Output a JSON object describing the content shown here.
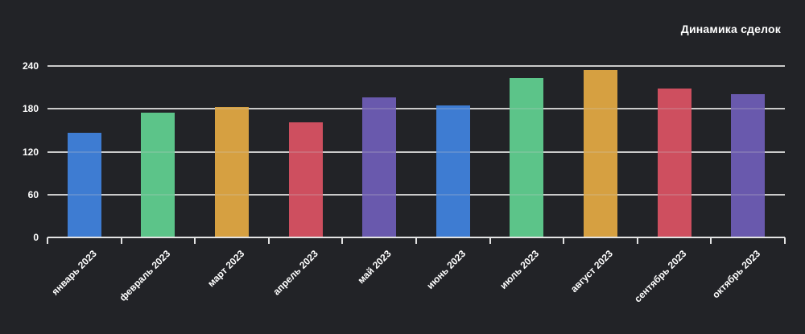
{
  "chart_data": {
    "type": "bar",
    "title": "Динамика сделок",
    "categories": [
      "январь 2023",
      "февраль 2023",
      "март 2023",
      "апрель 2023",
      "май 2023",
      "июнь 2023",
      "июль 2023",
      "август 2023",
      "сентябрь 2023",
      "октябрь 2023"
    ],
    "values": [
      146,
      175,
      182,
      161,
      196,
      185,
      223,
      234,
      209,
      201
    ],
    "bar_colors": [
      "#3e7cd2",
      "#5cc489",
      "#d6a041",
      "#ce4f5f",
      "#6959ad",
      "#3e7cd2",
      "#5cc489",
      "#d6a041",
      "#ce4f5f",
      "#6959ad"
    ],
    "xlabel": "",
    "ylabel": "",
    "ylim": [
      0,
      240
    ],
    "yticks": [
      0,
      60,
      120,
      180,
      240
    ],
    "grid": true,
    "legend": false,
    "legend_position": "none",
    "title_position": "top-right",
    "background_color": "#222327",
    "gridline_color": "#c9c9c9",
    "axis_color": "#e3e3e3",
    "text_color": "#ffffff"
  }
}
